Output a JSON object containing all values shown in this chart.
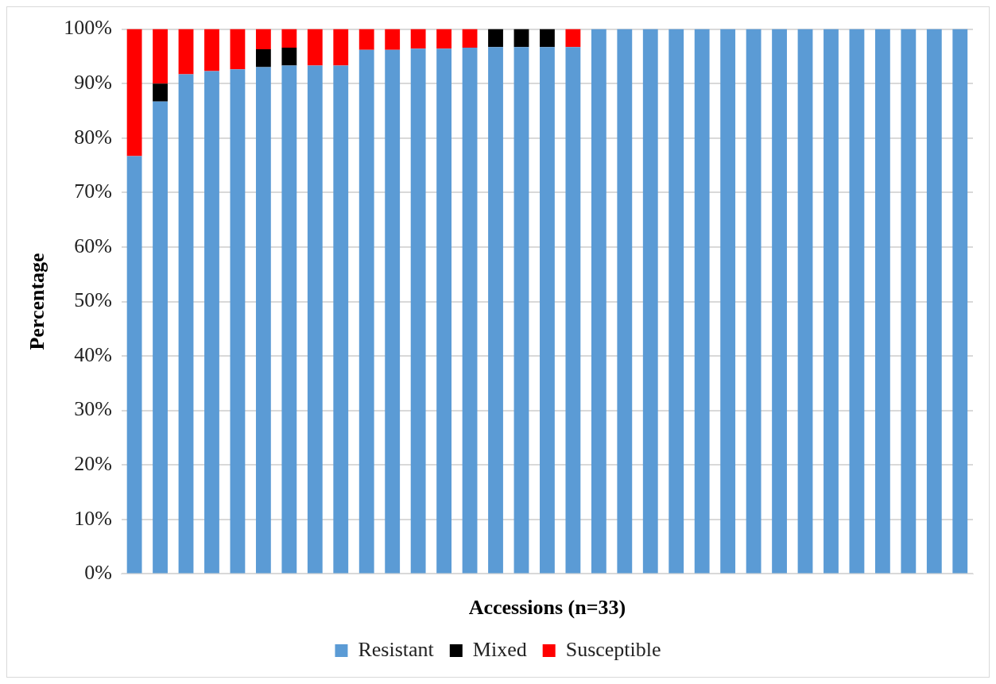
{
  "chart_data": {
    "type": "bar",
    "stacked": true,
    "xlabel": "Accessions (n=33)",
    "ylabel": "Percentage",
    "categories": [
      null,
      null,
      null,
      null,
      null,
      null,
      null,
      null,
      null,
      null,
      null,
      null,
      null,
      null,
      null,
      null,
      null,
      null,
      null,
      null,
      null,
      null,
      null,
      null,
      null,
      null,
      null,
      null,
      null,
      null,
      null,
      null,
      null
    ],
    "ylim": [
      0,
      100
    ],
    "yticks": [
      {
        "value": 0,
        "label": "0%"
      },
      {
        "value": 10,
        "label": "10%"
      },
      {
        "value": 20,
        "label": "20%"
      },
      {
        "value": 30,
        "label": "30%"
      },
      {
        "value": 40,
        "label": "40%"
      },
      {
        "value": 50,
        "label": "50%"
      },
      {
        "value": 60,
        "label": "60%"
      },
      {
        "value": 70,
        "label": "70%"
      },
      {
        "value": 80,
        "label": "80%"
      },
      {
        "value": 90,
        "label": "90%"
      },
      {
        "value": 100,
        "label": "100%"
      }
    ],
    "grid": "y",
    "legend": "bottom",
    "series": [
      {
        "name": "Resistant",
        "color": "#5b9bd5",
        "values": [
          76.7,
          86.7,
          91.7,
          92.3,
          92.6,
          93.0,
          93.3,
          93.3,
          93.3,
          96.2,
          96.2,
          96.4,
          96.4,
          96.6,
          96.7,
          96.7,
          96.7,
          96.7,
          100,
          100,
          100,
          100,
          100,
          100,
          100,
          100,
          100,
          100,
          100,
          100,
          100,
          100,
          100
        ]
      },
      {
        "name": "Mixed",
        "color": "#000000",
        "values": [
          0,
          3.3,
          0,
          0,
          0,
          3.3,
          3.3,
          0,
          0,
          0,
          0,
          0,
          0,
          0,
          3.3,
          3.3,
          3.3,
          0,
          0,
          0,
          0,
          0,
          0,
          0,
          0,
          0,
          0,
          0,
          0,
          0,
          0,
          0,
          0
        ]
      },
      {
        "name": "Susceptible",
        "color": "#ff0000",
        "values": [
          23.3,
          10,
          8.3,
          7.7,
          7.4,
          3.7,
          3.4,
          6.7,
          6.7,
          3.8,
          3.8,
          3.6,
          3.6,
          3.4,
          0,
          0,
          0,
          3.3,
          0,
          0,
          0,
          0,
          0,
          0,
          0,
          0,
          0,
          0,
          0,
          0,
          0,
          0,
          0
        ]
      }
    ]
  }
}
